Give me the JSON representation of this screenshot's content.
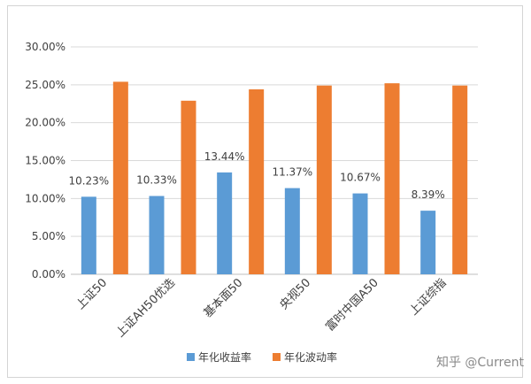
{
  "chart_data": {
    "type": "bar",
    "categories": [
      "上证50",
      "上证AH50优选",
      "基本面50",
      "央视50",
      "富时中国A50",
      "上证综指"
    ],
    "series": [
      {
        "name": "年化收益率",
        "color": "#5b9bd5",
        "values": [
          10.23,
          10.33,
          13.44,
          11.37,
          10.67,
          8.39
        ],
        "labels": [
          "10.23%",
          "10.33%",
          "13.44%",
          "11.37%",
          "10.67%",
          "8.39%"
        ]
      },
      {
        "name": "年化波动率",
        "color": "#ed7d31",
        "values": [
          25.4,
          22.9,
          24.4,
          24.9,
          25.2,
          24.9
        ]
      }
    ],
    "ylim": [
      0,
      30
    ],
    "yticks": [
      "0.00%",
      "5.00%",
      "10.00%",
      "15.00%",
      "20.00%",
      "25.00%",
      "30.00%"
    ],
    "grid": true,
    "legend_position": "bottom"
  },
  "watermark": "知乎 @Current"
}
